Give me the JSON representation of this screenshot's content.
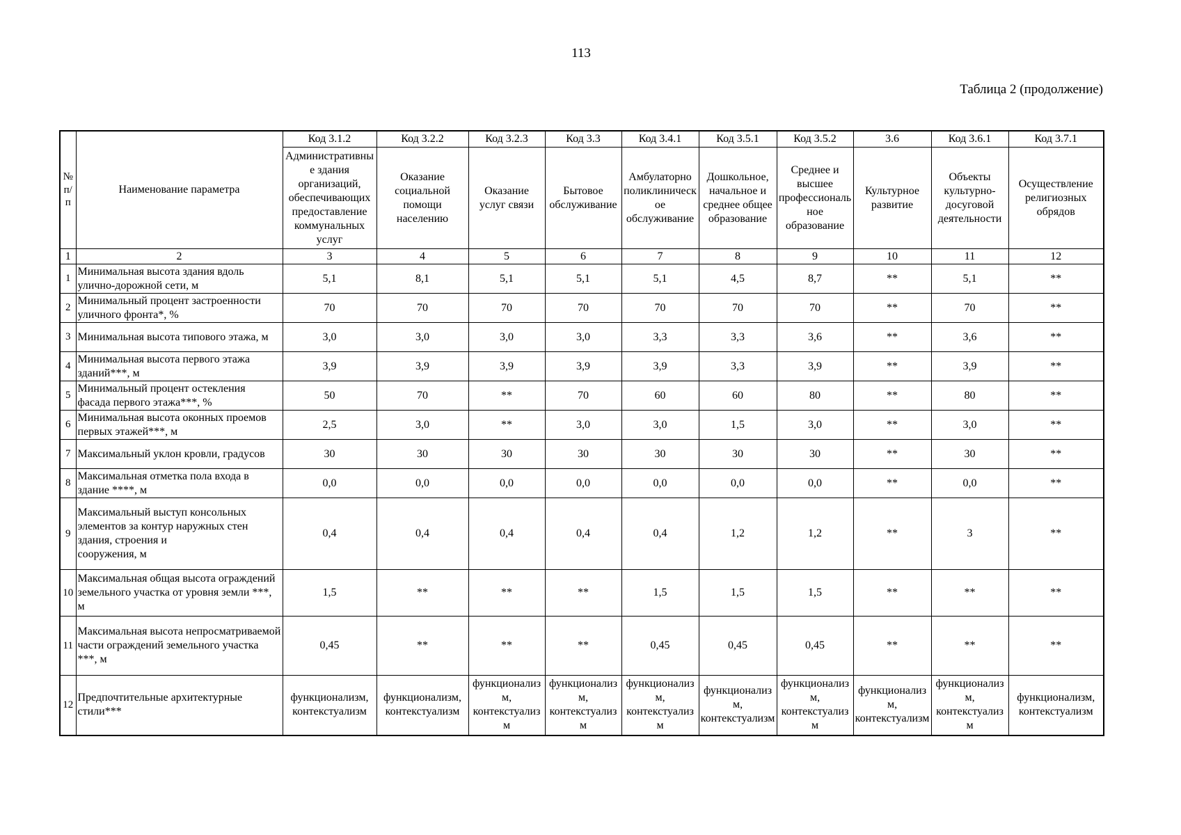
{
  "page": {
    "number": "113",
    "caption": "Таблица 2 (продолжение)"
  },
  "table": {
    "corner": {
      "num_label": "№ п/п",
      "name_label": "Наименование параметра"
    },
    "columns": [
      {
        "code": "Код 3.1.2",
        "title": "Административные здания организаций, обеспечивающих предоставление коммунальных услуг"
      },
      {
        "code": "Код 3.2.2",
        "title": "Оказание социальной помощи населению"
      },
      {
        "code": "Код 3.2.3",
        "title": "Оказание услуг связи"
      },
      {
        "code": "Код 3.3",
        "title": "Бытовое обслуживание"
      },
      {
        "code": "Код 3.4.1",
        "title": "Амбулаторно поликлиническое обслуживание"
      },
      {
        "code": "Код 3.5.1",
        "title": "Дошкольное, начальное и среднее общее образование"
      },
      {
        "code": "Код 3.5.2",
        "title": "Среднее и высшее профессиональное образование"
      },
      {
        "code": "3.6",
        "title": "Культурное развитие"
      },
      {
        "code": "Код 3.6.1",
        "title": "Объекты культурно-досуговой деятельности"
      },
      {
        "code": "Код 3.7.1",
        "title": "Осуществление религиозных обрядов"
      }
    ],
    "index_row": [
      "1",
      "2",
      "3",
      "4",
      "5",
      "6",
      "7",
      "8",
      "9",
      "10",
      "11",
      "12"
    ],
    "rows": [
      {
        "num": "1",
        "name": "Минимальная высота здания вдоль улично-дорожной сети, м",
        "values": [
          "5,1",
          "8,1",
          "5,1",
          "5,1",
          "5,1",
          "4,5",
          "8,7",
          "**",
          "5,1",
          "**"
        ]
      },
      {
        "num": "2",
        "name": "Минимальный процент застроенности уличного фронта*, %",
        "values": [
          "70",
          "70",
          "70",
          "70",
          "70",
          "70",
          "70",
          "**",
          "70",
          "**"
        ]
      },
      {
        "num": "3",
        "name": "Минимальная высота типового этажа, м",
        "values": [
          "3,0",
          "3,0",
          "3,0",
          "3,0",
          "3,3",
          "3,3",
          "3,6",
          "**",
          "3,6",
          "**"
        ]
      },
      {
        "num": "4",
        "name": "Минимальная высота первого этажа зданий***, м",
        "values": [
          "3,9",
          "3,9",
          "3,9",
          "3,9",
          "3,9",
          "3,3",
          "3,9",
          "**",
          "3,9",
          "**"
        ]
      },
      {
        "num": "5",
        "name": "Минимальный процент остекления фасада первого этажа***, %",
        "values": [
          "50",
          "70",
          "**",
          "70",
          "60",
          "60",
          "80",
          "**",
          "80",
          "**"
        ]
      },
      {
        "num": "6",
        "name": "Минимальная высота оконных проемов первых этажей***, м",
        "values": [
          "2,5",
          "3,0",
          "**",
          "3,0",
          "3,0",
          "1,5",
          "3,0",
          "**",
          "3,0",
          "**"
        ]
      },
      {
        "num": "7",
        "name": "Максимальный уклон кровли, градусов",
        "values": [
          "30",
          "30",
          "30",
          "30",
          "30",
          "30",
          "30",
          "**",
          "30",
          "**"
        ]
      },
      {
        "num": "8",
        "name": "Максимальная отметка пола входа в здание ****, м",
        "values": [
          "0,0",
          "0,0",
          "0,0",
          "0,0",
          "0,0",
          "0,0",
          "0,0",
          "**",
          "0,0",
          "**"
        ]
      },
      {
        "num": "9",
        "name": "Максимальный выступ консольных элементов за контур наружных стен здания, строения и\nсооружения, м",
        "values": [
          "0,4",
          "0,4",
          "0,4",
          "0,4",
          "0,4",
          "1,2",
          "1,2",
          "**",
          "3",
          "**"
        ]
      },
      {
        "num": "10",
        "name": "Максимальная общая высота ограждений земельного участка от уровня земли ***, м",
        "values": [
          "1,5",
          "**",
          "**",
          "**",
          "1,5",
          "1,5",
          "1,5",
          "**",
          "**",
          "**"
        ]
      },
      {
        "num": "11",
        "name": "Максимальная высота непросматриваемой части ограждений земельного участка\n***, м",
        "values": [
          "0,45",
          "**",
          "**",
          "**",
          "0,45",
          "0,45",
          "0,45",
          "**",
          "**",
          "**"
        ]
      },
      {
        "num": "12",
        "name": "Предпочтительные архитектурные стили***",
        "values": [
          "функционализм, контекстуализм",
          "функционализм, контекстуализм",
          "функционализм, контекстуализм",
          "функционализм, контекстуализм",
          "функционализм, контекстуализм",
          "функционализм, контекстуализм",
          "функционализм, контекстуализм",
          "функционализм, контекстуализм",
          "функционализм, контекстуализм",
          "функционализм, контекстуализм"
        ]
      }
    ]
  }
}
